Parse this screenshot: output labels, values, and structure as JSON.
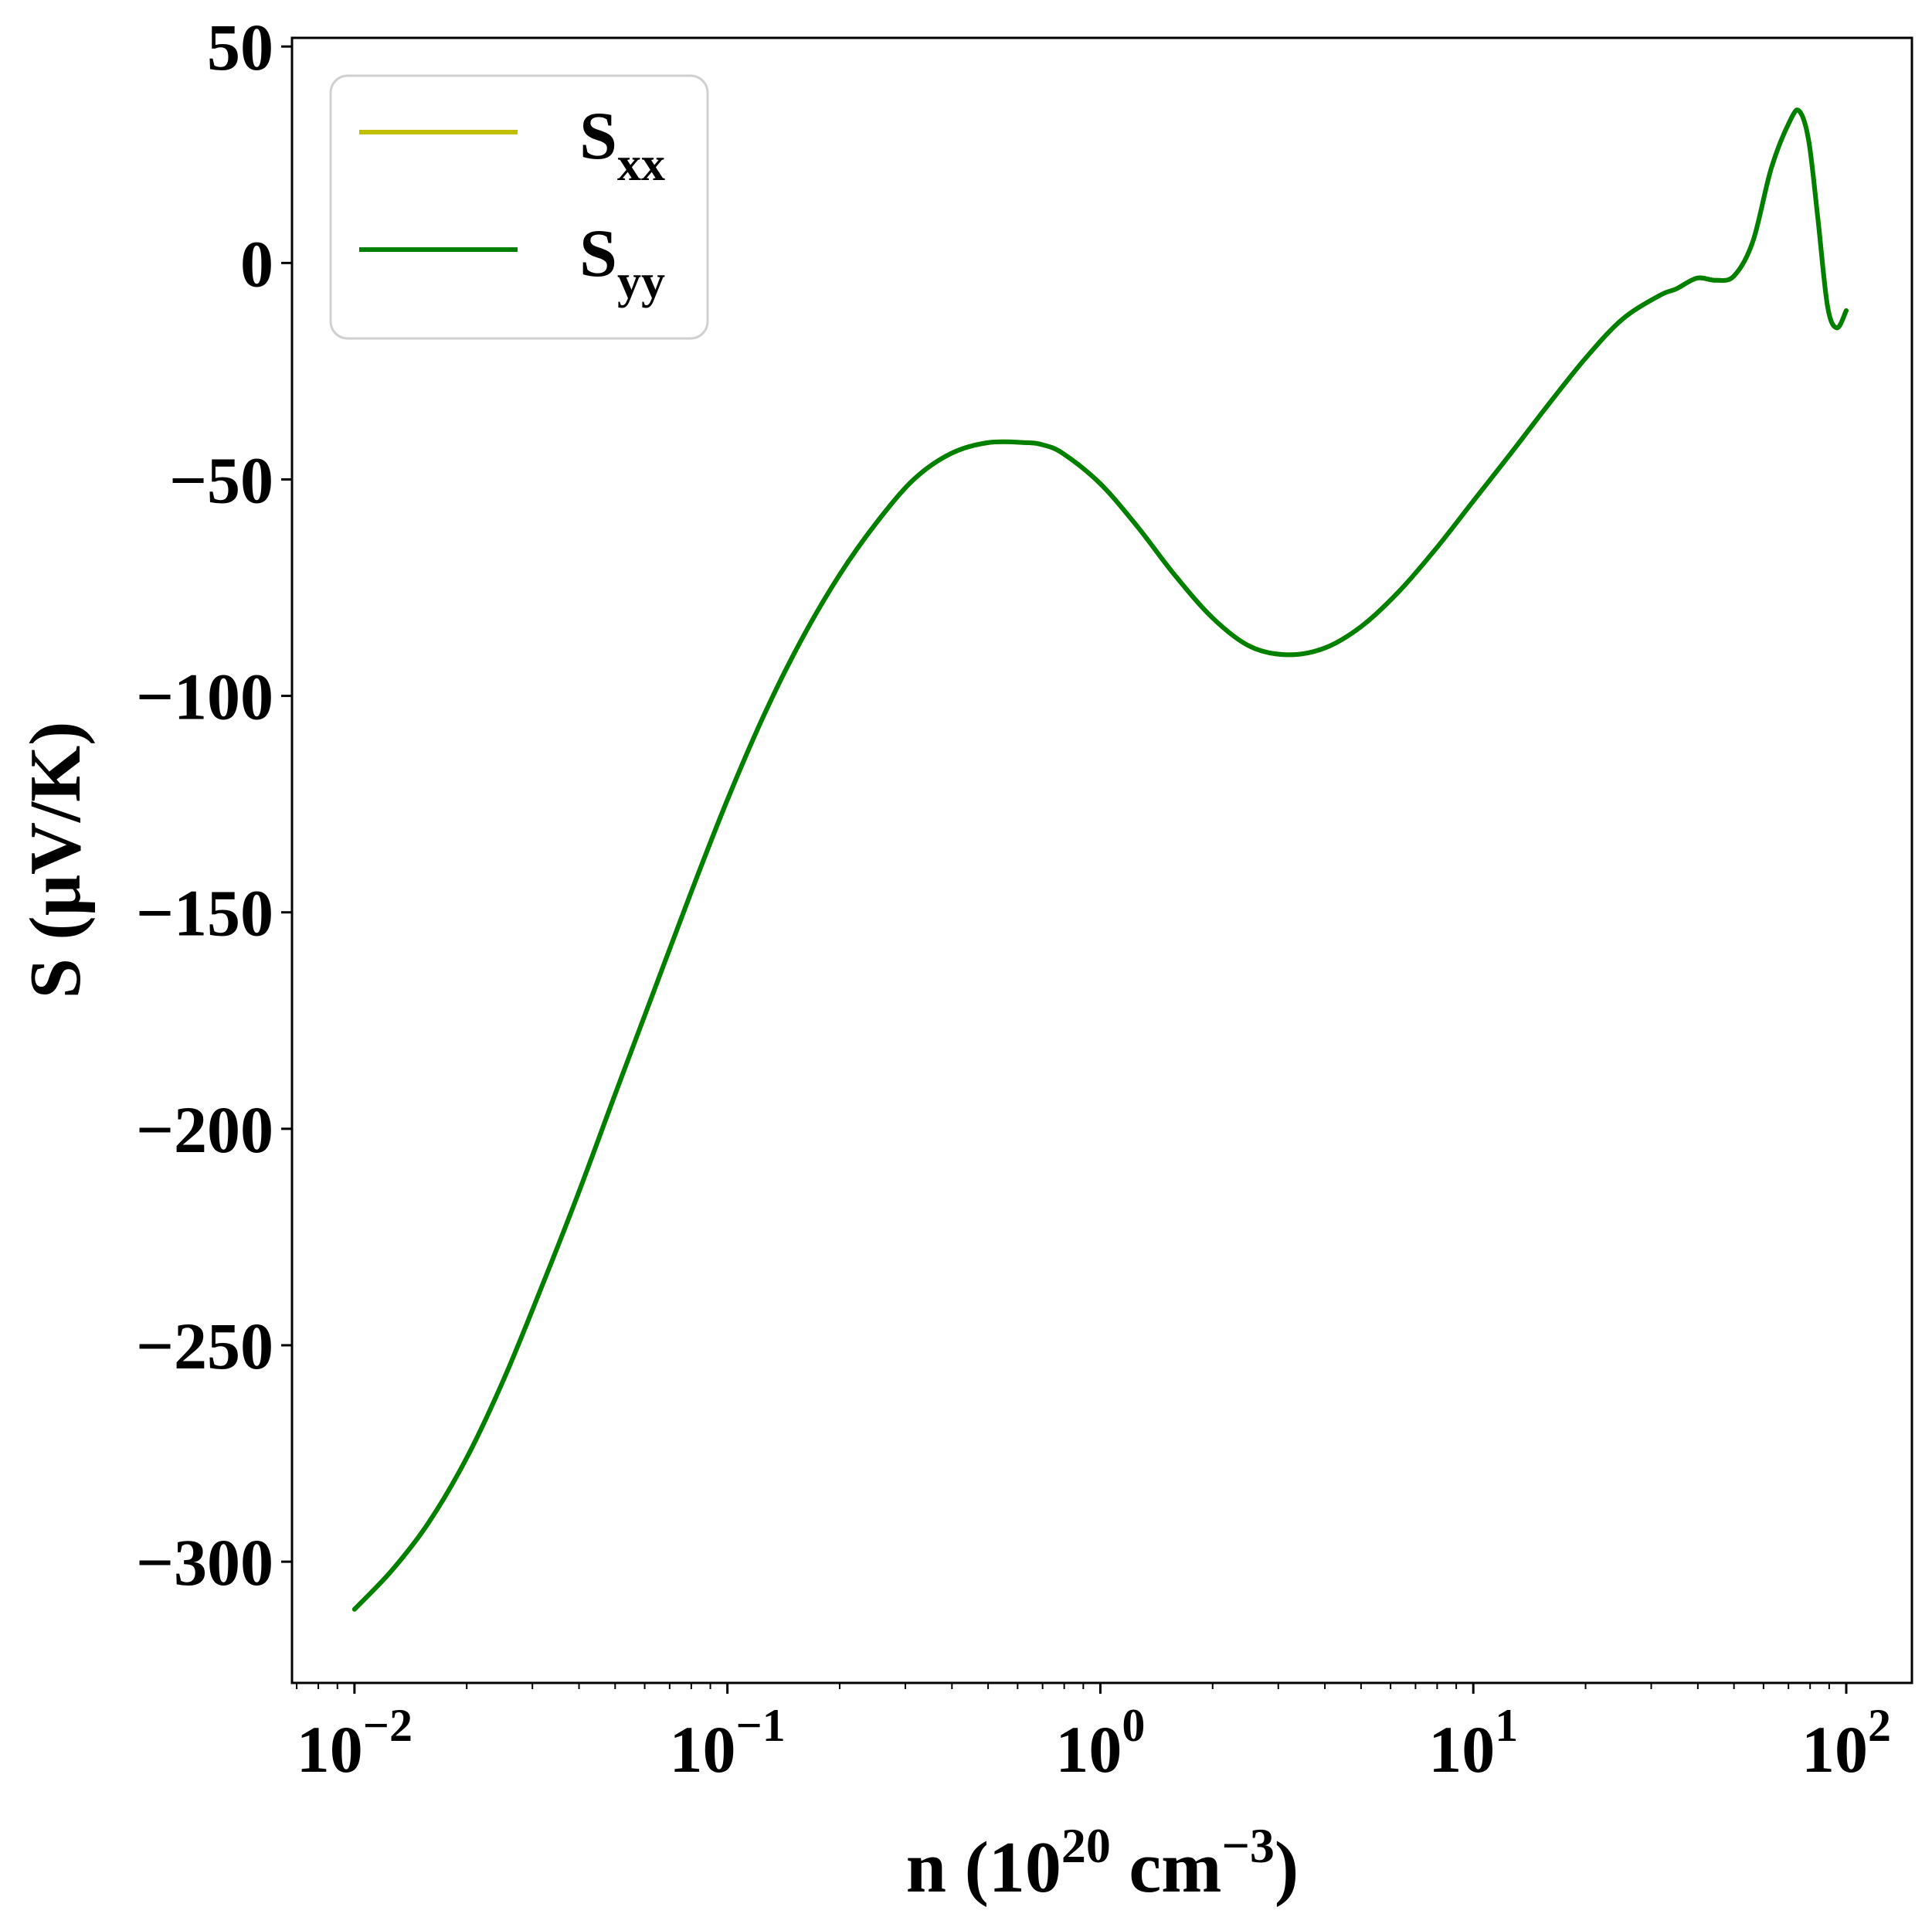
{
  "chart_data": {
    "type": "line",
    "title": "",
    "xlabel": "n (10^20 cm^-3)",
    "ylabel": "S (μV/K)",
    "xscale": "log",
    "xlim": [
      0.0068,
      150
    ],
    "ylim": [
      -328,
      52
    ],
    "grid": false,
    "legend": {
      "placement": "top-left",
      "entries": [
        {
          "name_main": "S",
          "name_sub": "xx",
          "color": "#bfbf00"
        },
        {
          "name_main": "S",
          "name_sub": "yy",
          "color": "#008000"
        }
      ]
    },
    "x_major_ticks": [
      {
        "value": 0.01,
        "base": "10",
        "exp": "−2"
      },
      {
        "value": 0.1,
        "base": "10",
        "exp": "−1"
      },
      {
        "value": 1,
        "base": "10",
        "exp": "0"
      },
      {
        "value": 10,
        "base": "10",
        "exp": "1"
      },
      {
        "value": 100,
        "base": "10",
        "exp": "2"
      }
    ],
    "y_ticks": [
      {
        "value": 50,
        "label": "50"
      },
      {
        "value": 0,
        "label": "0"
      },
      {
        "value": -50,
        "label": "−50"
      },
      {
        "value": -100,
        "label": "−100"
      },
      {
        "value": -150,
        "label": "−150"
      },
      {
        "value": -200,
        "label": "−200"
      },
      {
        "value": -250,
        "label": "−250"
      },
      {
        "value": -300,
        "label": "−300"
      }
    ],
    "series": [
      {
        "name": "Sxx",
        "color": "#bfbf00",
        "x": [
          0.01,
          0.0126,
          0.0158,
          0.02,
          0.0251,
          0.0316,
          0.0398,
          0.05,
          0.063,
          0.0794,
          0.1,
          0.126,
          0.158,
          0.2,
          0.251,
          0.316,
          0.398,
          0.5,
          0.63,
          0.7,
          0.794,
          1.0,
          1.26,
          1.58,
          2.0,
          2.51,
          3.16,
          3.98,
          5.0,
          6.3,
          7.94,
          10,
          12.6,
          15.8,
          20,
          25.1,
          31.6,
          35,
          39.8,
          44.7,
          50,
          56.2,
          63,
          70.8,
          75,
          79.4,
          84,
          89.1,
          94.4,
          100
        ],
        "values": [
          -311,
          -302,
          -291,
          -276,
          -258,
          -237,
          -215,
          -192,
          -169,
          -146,
          -124,
          -104,
          -87,
          -72,
          -60,
          -50,
          -44,
          -41.5,
          -41.5,
          -42,
          -44,
          -51,
          -61,
          -72,
          -82,
          -88.5,
          -90.5,
          -89,
          -84,
          -76,
          -66,
          -55,
          -44,
          -33,
          -22,
          -13,
          -7.5,
          -6,
          -3.5,
          -4,
          -3,
          5,
          22,
          33,
          35,
          28,
          10,
          -10,
          -15,
          -11
        ]
      },
      {
        "name": "Syy",
        "color": "#008000",
        "x": [
          0.01,
          0.0126,
          0.0158,
          0.02,
          0.0251,
          0.0316,
          0.0398,
          0.05,
          0.063,
          0.0794,
          0.1,
          0.126,
          0.158,
          0.2,
          0.251,
          0.316,
          0.398,
          0.5,
          0.63,
          0.7,
          0.794,
          1.0,
          1.26,
          1.58,
          2.0,
          2.51,
          3.16,
          3.98,
          5.0,
          6.3,
          7.94,
          10,
          12.6,
          15.8,
          20,
          25.1,
          31.6,
          35,
          39.8,
          44.7,
          50,
          56.2,
          63,
          70.8,
          75,
          79.4,
          84,
          89.1,
          94.4,
          100
        ],
        "values": [
          -311,
          -302,
          -291,
          -276,
          -258,
          -237,
          -215,
          -192,
          -169,
          -146,
          -124,
          -104,
          -87,
          -72,
          -60,
          -50,
          -44,
          -41.5,
          -41.5,
          -42,
          -44,
          -51,
          -61,
          -72,
          -82,
          -88.5,
          -90.5,
          -89,
          -84,
          -76,
          -66,
          -55,
          -44,
          -33,
          -22,
          -13,
          -7.5,
          -6,
          -3.5,
          -4,
          -3,
          5,
          22,
          33,
          35,
          28,
          10,
          -10,
          -15,
          -11
        ]
      }
    ]
  },
  "labels": {
    "x_axis_prefix": "n (10",
    "x_axis_sup1": "20",
    "x_axis_mid": " cm",
    "x_axis_sup2": "−3",
    "x_axis_suffix": ")",
    "y_axis": "S (μV/K)"
  }
}
